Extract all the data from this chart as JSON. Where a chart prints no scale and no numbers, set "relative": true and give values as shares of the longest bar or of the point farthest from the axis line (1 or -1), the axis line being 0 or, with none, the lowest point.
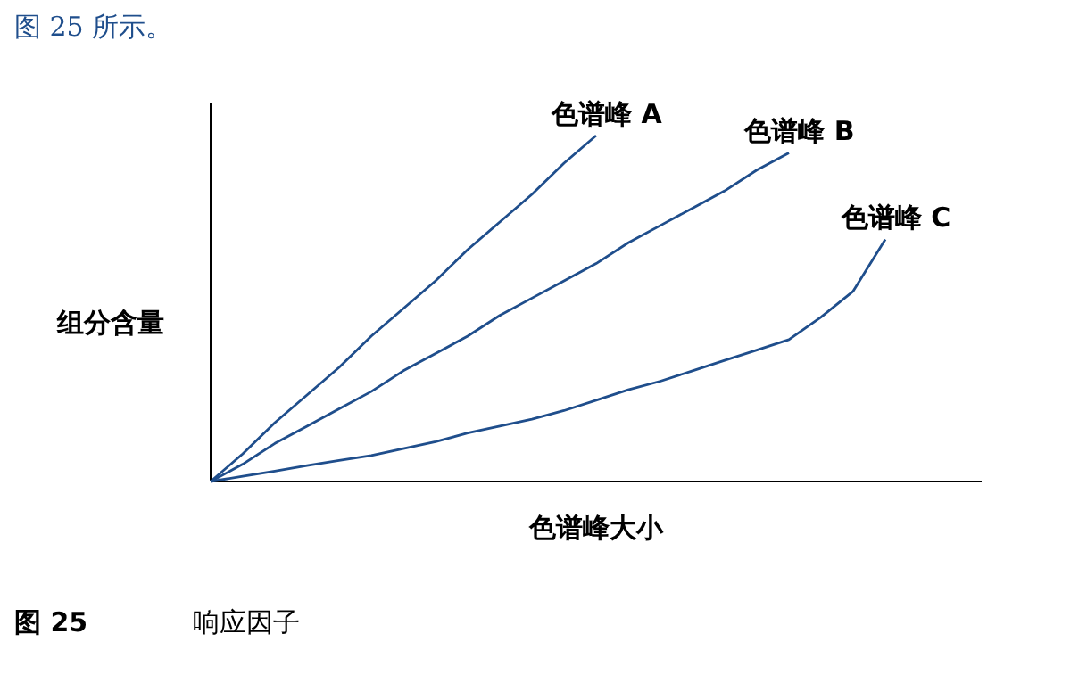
{
  "chart_data": {
    "type": "line",
    "relative": true,
    "xlabel": "色谱峰大小",
    "ylabel": "组分含量",
    "categories": [
      null,
      null,
      null,
      null,
      null,
      null,
      null,
      null,
      null,
      null,
      null,
      null,
      null,
      null,
      null,
      null,
      null,
      null,
      null,
      null,
      null,
      null,
      null,
      null,
      null
    ],
    "annotations": [
      "图 25 所示。",
      "图 25",
      "响应因子"
    ],
    "legend": false,
    "grid": false,
    "tick_labels": false,
    "marker": "none",
    "line_style": "solid",
    "series": [
      {
        "name": "色谱峰 A",
        "color": "#1f4e8c",
        "values": [
          0,
          0.08,
          0.17,
          0.25,
          0.33,
          0.42,
          0.5,
          0.58,
          0.67,
          0.75,
          0.83,
          0.92,
          1,
          null,
          null,
          null,
          null,
          null,
          null,
          null,
          null,
          null,
          null,
          null,
          null
        ]
      },
      {
        "name": "色谱峰 B",
        "color": "#1f4e8c",
        "values": [
          0,
          0.05,
          0.11,
          0.16,
          0.21,
          0.26,
          0.32,
          0.37,
          0.42,
          0.48,
          0.53,
          0.58,
          0.63,
          0.69,
          0.74,
          0.79,
          0.84,
          0.9,
          0.95,
          null,
          null,
          null,
          null,
          null,
          null
        ]
      },
      {
        "name": "色谱峰 C",
        "color": "#1f4e8c",
        "values": [
          0,
          0.015,
          0.03,
          0.046,
          0.061,
          0.075,
          0.095,
          0.115,
          0.14,
          0.16,
          0.18,
          0.205,
          0.235,
          0.265,
          0.29,
          0.32,
          0.35,
          0.38,
          0.41,
          0.475,
          0.55,
          0.7,
          null,
          null,
          null
        ]
      }
    ]
  }
}
